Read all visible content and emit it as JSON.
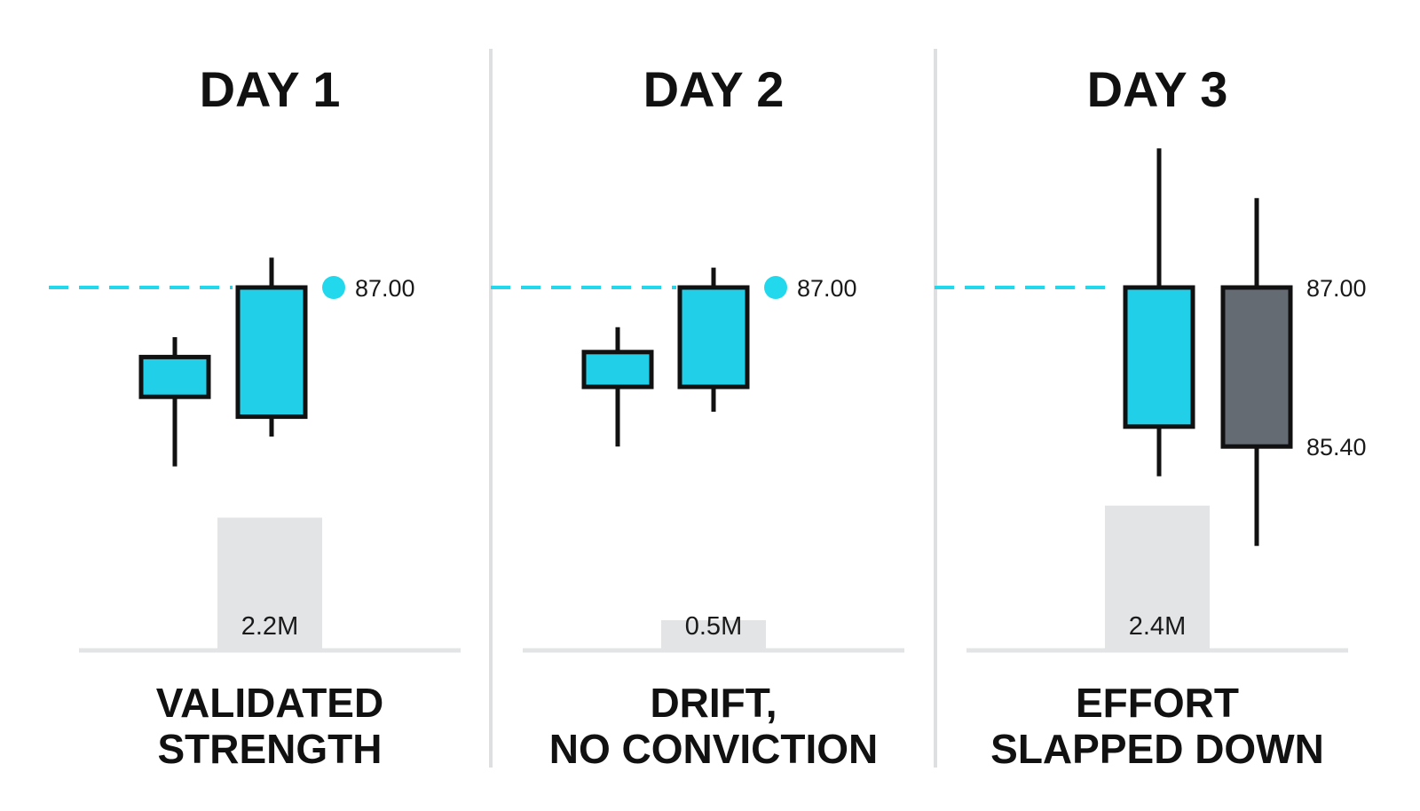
{
  "colors": {
    "bullish": "#22cfe9",
    "bearish": "#646b73",
    "outline": "#111111",
    "level_line": "#22d8ec",
    "volume_bar": "#e3e4e6",
    "divider": "#dedfe1",
    "baseline": "#e3e4e6"
  },
  "chart_data": [
    {
      "type": "candlestick",
      "title": "DAY 1",
      "caption": [
        "VALIDATED",
        "STRENGTH"
      ],
      "reference_level": {
        "value": 87.0,
        "label": "87.00",
        "marker": "dot"
      },
      "candles": [
        {
          "open": 85.9,
          "high": 86.5,
          "low": 85.2,
          "close": 86.3,
          "direction": "up"
        },
        {
          "open": 85.7,
          "high": 87.3,
          "low": 85.5,
          "close": 87.0,
          "direction": "up"
        }
      ],
      "volume": {
        "value": 2.2,
        "unit": "M",
        "label": "2.2M"
      }
    },
    {
      "type": "candlestick",
      "title": "DAY 2",
      "caption": [
        "DRIFT,",
        "NO CONVICTION"
      ],
      "reference_level": {
        "value": 87.0,
        "label": "87.00",
        "marker": "dot"
      },
      "candles": [
        {
          "open": 86.0,
          "high": 86.6,
          "low": 85.4,
          "close": 86.35,
          "direction": "up"
        },
        {
          "open": 86.0,
          "high": 87.2,
          "low": 85.75,
          "close": 87.0,
          "direction": "up"
        }
      ],
      "volume": {
        "value": 0.5,
        "unit": "M",
        "label": "0.5M"
      }
    },
    {
      "type": "candlestick",
      "title": "DAY 3",
      "caption": [
        "EFFORT",
        "SLAPPED DOWN"
      ],
      "reference_level": {
        "value": 87.0,
        "label": "87.00",
        "marker": "none"
      },
      "price_labels": [
        {
          "value": 87.0,
          "label": "87.00"
        },
        {
          "value": 85.4,
          "label": "85.40"
        }
      ],
      "candles": [
        {
          "open": 85.6,
          "high": 88.4,
          "low": 85.1,
          "close": 87.0,
          "direction": "up"
        },
        {
          "open": 87.0,
          "high": 87.9,
          "low": 84.4,
          "close": 85.4,
          "direction": "down"
        }
      ],
      "volume": {
        "value": 2.4,
        "unit": "M",
        "label": "2.4M"
      }
    }
  ]
}
